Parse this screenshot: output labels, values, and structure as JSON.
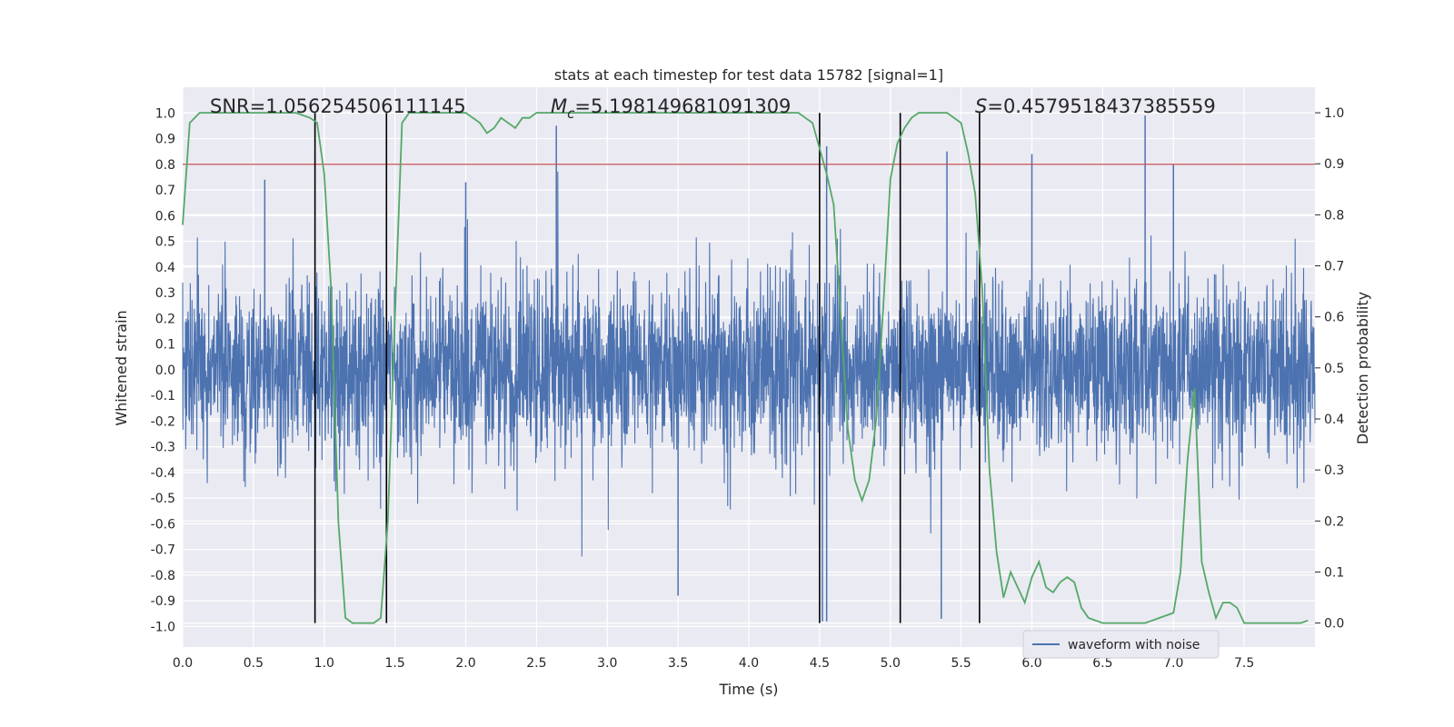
{
  "chart_data": {
    "type": "line",
    "title": "stats at each timestep for test data 15782 [signal=1]",
    "xlabel": "Time (s)",
    "ylabel_left": "Whitened strain",
    "ylabel_right": "Detection probability",
    "xlim": [
      0,
      8
    ],
    "ylim_left": [
      -1.08,
      1.1
    ],
    "ylim_right": [
      -0.047,
      1.05
    ],
    "x_ticks": [
      "0.0",
      "0.5",
      "1.0",
      "1.5",
      "2.0",
      "2.5",
      "3.0",
      "3.5",
      "4.0",
      "4.5",
      "5.0",
      "5.5",
      "6.0",
      "6.5",
      "7.0",
      "7.5"
    ],
    "y_left_ticks": [
      "1.0",
      "0.9",
      "0.8",
      "0.7",
      "0.6",
      "0.5",
      "0.4",
      "0.3",
      "0.2",
      "0.1",
      "0.0",
      "-0.1",
      "-0.2",
      "-0.3",
      "-0.4",
      "-0.5",
      "-0.6",
      "-0.7",
      "-0.8",
      "-0.9",
      "-1.0"
    ],
    "y_right_ticks": [
      "1.0",
      "0.9",
      "0.8",
      "0.7",
      "0.6",
      "0.5",
      "0.4",
      "0.3",
      "0.2",
      "0.1",
      "0.0"
    ],
    "annotations": {
      "snr": "SNR=1.056254506111145",
      "mc": "=5.198149681091309",
      "mc_symbol": "M",
      "mc_sub": "c",
      "s": "=0.4579518437385559",
      "s_symbol": "S"
    },
    "threshold": {
      "value": 0.8,
      "axis": "left",
      "color": "#c44e52"
    },
    "vertical_lines": [
      0.935,
      1.44,
      4.5,
      5.07,
      5.63
    ],
    "waveform": {
      "name": "waveform with noise",
      "color": "#4c72b0",
      "seed": 15782,
      "spread_p95": [
        -0.5,
        0.6
      ],
      "extremes": [
        {
          "t": 2.64,
          "v": 0.95
        },
        {
          "t": 6.8,
          "v": 0.99
        },
        {
          "t": 4.55,
          "v": 0.87
        },
        {
          "t": 4.52,
          "v": -0.98
        },
        {
          "t": 4.55,
          "v": -0.98
        },
        {
          "t": 5.36,
          "v": -0.97
        },
        {
          "t": 3.5,
          "v": -0.88
        },
        {
          "t": 5.4,
          "v": 0.85
        },
        {
          "t": 6.0,
          "v": 0.84
        },
        {
          "t": 7.0,
          "v": 0.8
        },
        {
          "t": 0.58,
          "v": 0.74
        },
        {
          "t": 2.0,
          "v": 0.73
        }
      ]
    },
    "detection_probability": {
      "name": "detection probability",
      "color": "#55a868",
      "x": [
        0.0,
        0.05,
        0.12,
        0.2,
        0.4,
        0.6,
        0.8,
        0.9,
        0.95,
        1.0,
        1.05,
        1.1,
        1.15,
        1.2,
        1.3,
        1.35,
        1.4,
        1.45,
        1.5,
        1.55,
        1.6,
        1.7,
        1.8,
        1.9,
        2.0,
        2.1,
        2.15,
        2.2,
        2.25,
        2.3,
        2.35,
        2.4,
        2.45,
        2.5,
        2.55,
        2.6,
        2.7,
        3.0,
        3.3,
        3.6,
        3.9,
        4.2,
        4.35,
        4.4,
        4.45,
        4.5,
        4.55,
        4.6,
        4.65,
        4.7,
        4.75,
        4.8,
        4.85,
        4.9,
        4.95,
        5.0,
        5.05,
        5.1,
        5.15,
        5.2,
        5.3,
        5.4,
        5.5,
        5.55,
        5.6,
        5.65,
        5.7,
        5.75,
        5.8,
        5.85,
        5.9,
        5.95,
        6.0,
        6.05,
        6.1,
        6.15,
        6.2,
        6.25,
        6.3,
        6.35,
        6.4,
        6.5,
        6.6,
        6.7,
        6.8,
        6.9,
        7.0,
        7.05,
        7.1,
        7.15,
        7.2,
        7.25,
        7.3,
        7.35,
        7.4,
        7.45,
        7.5,
        7.6,
        7.7,
        7.8,
        7.9,
        7.95
      ],
      "y": [
        0.78,
        0.98,
        1.0,
        1.0,
        1.0,
        1.0,
        1.0,
        0.99,
        0.98,
        0.88,
        0.65,
        0.2,
        0.01,
        0.0,
        0.0,
        0.0,
        0.01,
        0.2,
        0.6,
        0.98,
        1.0,
        1.0,
        1.0,
        1.0,
        1.0,
        0.98,
        0.96,
        0.97,
        0.99,
        0.98,
        0.97,
        0.99,
        0.99,
        1.0,
        1.0,
        1.0,
        1.0,
        1.0,
        1.0,
        1.0,
        1.0,
        1.0,
        1.0,
        0.99,
        0.98,
        0.93,
        0.88,
        0.82,
        0.6,
        0.38,
        0.28,
        0.24,
        0.28,
        0.4,
        0.62,
        0.87,
        0.94,
        0.97,
        0.99,
        1.0,
        1.0,
        1.0,
        0.98,
        0.92,
        0.84,
        0.65,
        0.3,
        0.14,
        0.05,
        0.1,
        0.07,
        0.04,
        0.09,
        0.12,
        0.07,
        0.06,
        0.08,
        0.09,
        0.08,
        0.03,
        0.01,
        0.0,
        0.0,
        0.0,
        0.0,
        0.01,
        0.02,
        0.1,
        0.32,
        0.46,
        0.12,
        0.06,
        0.01,
        0.04,
        0.04,
        0.03,
        0.0,
        0.0,
        0.0,
        0.0,
        0.0,
        0.005
      ]
    },
    "legend": {
      "placement": "lower-right",
      "entries": [
        "waveform with noise"
      ]
    },
    "grid": true
  }
}
